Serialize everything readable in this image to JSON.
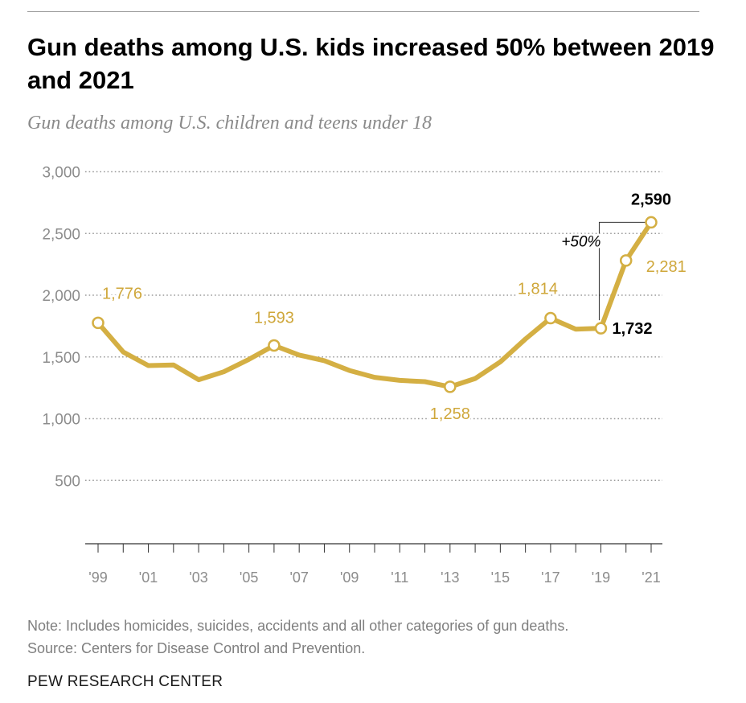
{
  "header": {
    "title": "Gun deaths among U.S. kids increased 50% between 2019 and 2021",
    "subtitle": "Gun deaths among U.S. children and teens under 18"
  },
  "footer": {
    "note": "Note: Includes homicides, suicides, accidents and all other categories of gun deaths.",
    "source": "Source: Centers for Disease Control and Prevention.",
    "brand": "PEW RESEARCH CENTER"
  },
  "colors": {
    "line": "#d4af43",
    "label_gold": "#cfa73a",
    "grid": "#9c9c9c",
    "axis_text": "#8c8c8c",
    "highlight_text": "#000000"
  },
  "chart_data": {
    "type": "line",
    "title": "Gun deaths among U.S. kids increased 50% between 2019 and 2021",
    "subtitle": "Gun deaths among U.S. children and teens under 18",
    "xlabel": "",
    "ylabel": "",
    "ylim": [
      0,
      3000
    ],
    "yticks": [
      500,
      1000,
      1500,
      2000,
      2500,
      3000
    ],
    "ytick_labels": [
      "500",
      "1,000",
      "1,500",
      "2,000",
      "2,500",
      "3,000"
    ],
    "xticks": [
      1999,
      2001,
      2003,
      2005,
      2007,
      2009,
      2011,
      2013,
      2015,
      2017,
      2019,
      2021
    ],
    "xtick_labels": [
      "'99",
      "'01",
      "'03",
      "'05",
      "'07",
      "'09",
      "'11",
      "'13",
      "'15",
      "'17",
      "'19",
      "'21"
    ],
    "grid": true,
    "series": [
      {
        "name": "Gun deaths among U.S. children and teens under 18",
        "x": [
          1999,
          2000,
          2001,
          2002,
          2003,
          2004,
          2005,
          2006,
          2007,
          2008,
          2009,
          2010,
          2011,
          2012,
          2013,
          2014,
          2015,
          2016,
          2017,
          2018,
          2019,
          2020,
          2021
        ],
        "values": [
          1776,
          1540,
          1430,
          1435,
          1315,
          1380,
          1480,
          1593,
          1515,
          1470,
          1390,
          1335,
          1310,
          1300,
          1258,
          1325,
          1460,
          1645,
          1814,
          1725,
          1732,
          2281,
          2590
        ]
      }
    ],
    "data_labels": [
      {
        "x": 1999,
        "value": 1776,
        "text": "1,776",
        "style": "gold",
        "placement": "above-right"
      },
      {
        "x": 2006,
        "value": 1593,
        "text": "1,593",
        "style": "gold",
        "placement": "above"
      },
      {
        "x": 2013,
        "value": 1258,
        "text": "1,258",
        "style": "gold",
        "placement": "below"
      },
      {
        "x": 2017,
        "value": 1814,
        "text": "1,814",
        "style": "gold",
        "placement": "above-left"
      },
      {
        "x": 2019,
        "value": 1732,
        "text": "1,732",
        "style": "bold",
        "placement": "right"
      },
      {
        "x": 2020,
        "value": 2281,
        "text": "2,281",
        "style": "gold",
        "placement": "below-right"
      },
      {
        "x": 2021,
        "value": 2590,
        "text": "2,590",
        "style": "bold",
        "placement": "above"
      }
    ],
    "annotation": {
      "text": "+50%",
      "from_x": 2019,
      "to_x": 2021,
      "from_value": 1732,
      "to_value": 2590
    }
  }
}
